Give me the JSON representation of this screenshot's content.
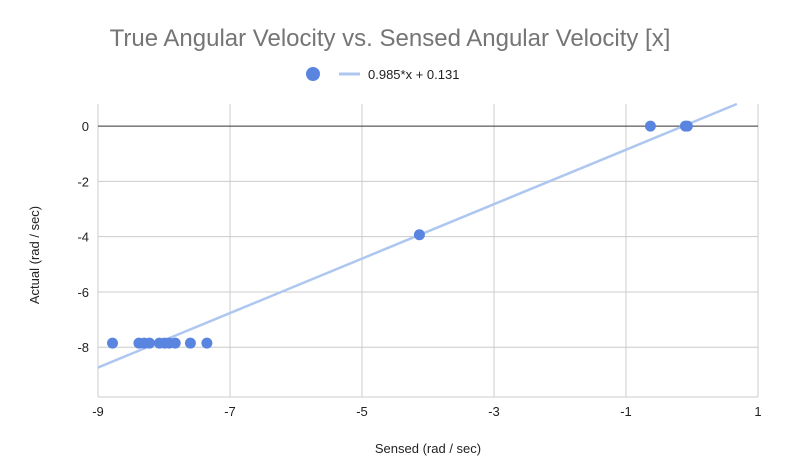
{
  "chart_data": {
    "type": "scatter",
    "title": "True Angular Velocity vs. Sensed Angular Velocity [x]",
    "xlabel": "Sensed (rad / sec)",
    "ylabel": "Actual (rad / sec)",
    "xlim": [
      -9,
      1
    ],
    "ylim": [
      -9.8,
      0.8
    ],
    "xticks": [
      "-9",
      "-7",
      "-5",
      "-3",
      "-1",
      "1"
    ],
    "xtick_values": [
      -9,
      -7,
      -5,
      -3,
      -1,
      1
    ],
    "yticks": [
      "0",
      "-2",
      "-4",
      "-6",
      "-8"
    ],
    "ytick_values": [
      0,
      -2,
      -4,
      -6,
      -8
    ],
    "grid": true,
    "legend_position": "top",
    "series": [
      {
        "type": "scatter",
        "color": "#5985e1",
        "points": [
          {
            "x": -8.78,
            "y": -7.85
          },
          {
            "x": -8.38,
            "y": -7.85
          },
          {
            "x": -8.3,
            "y": -7.85
          },
          {
            "x": -8.22,
            "y": -7.85
          },
          {
            "x": -8.07,
            "y": -7.85
          },
          {
            "x": -7.99,
            "y": -7.85
          },
          {
            "x": -7.92,
            "y": -7.85
          },
          {
            "x": -7.83,
            "y": -7.85
          },
          {
            "x": -7.6,
            "y": -7.85
          },
          {
            "x": -7.35,
            "y": -7.85
          },
          {
            "x": -4.13,
            "y": -3.93
          },
          {
            "x": -0.63,
            "y": 0.0
          },
          {
            "x": -0.1,
            "y": 0.0
          },
          {
            "x": -0.07,
            "y": 0.0
          }
        ]
      },
      {
        "type": "trendline",
        "name": "0.985*x + 0.131",
        "color": "#aec7f0",
        "slope": 0.985,
        "intercept": 0.131
      }
    ]
  }
}
